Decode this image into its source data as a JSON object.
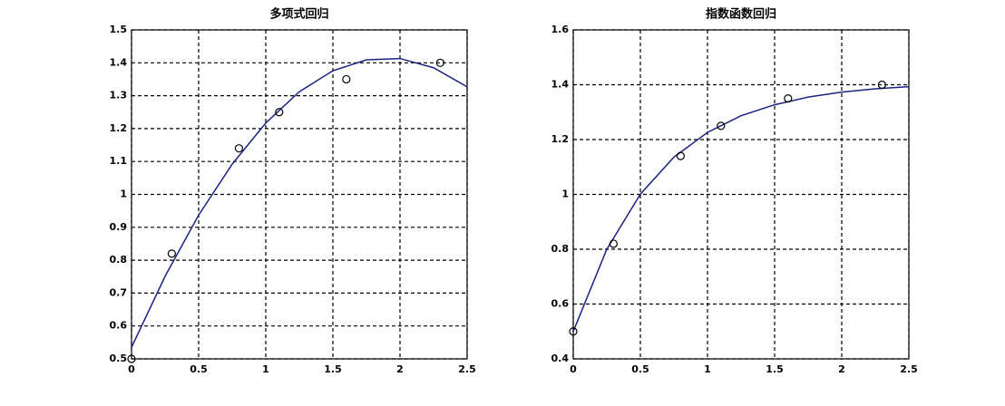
{
  "chart_data": [
    {
      "type": "line",
      "title": "多项式回归",
      "xlim": [
        0,
        2.5
      ],
      "xticks": [
        0,
        0.5,
        1,
        1.5,
        2,
        2.5
      ],
      "ylim": [
        0.5,
        1.5
      ],
      "yticks": [
        0.5,
        0.6,
        0.7,
        0.8,
        0.9,
        1,
        1.1,
        1.2,
        1.3,
        1.4,
        1.5
      ],
      "grid": true,
      "series": [
        {
          "type": "line",
          "color": "#1a237e",
          "x": [
            0,
            0.25,
            0.5,
            0.75,
            1,
            1.25,
            1.5,
            1.75,
            2,
            2.25,
            2.5
          ],
          "values": [
            0.535,
            0.751,
            0.937,
            1.092,
            1.217,
            1.312,
            1.376,
            1.409,
            1.413,
            1.385,
            1.327
          ]
        },
        {
          "type": "scatter",
          "color": "#000000",
          "x": [
            0,
            0.3,
            0.8,
            1.1,
            1.6,
            2.3
          ],
          "values": [
            0.5,
            0.82,
            1.14,
            1.25,
            1.35,
            1.4
          ]
        }
      ]
    },
    {
      "type": "line",
      "title": "指数函数回归",
      "xlim": [
        0,
        2.5
      ],
      "xticks": [
        0,
        0.5,
        1,
        1.5,
        2,
        2.5
      ],
      "ylim": [
        0.4,
        1.6
      ],
      "yticks": [
        0.4,
        0.6,
        0.8,
        1,
        1.2,
        1.4,
        1.6
      ],
      "grid": true,
      "series": [
        {
          "type": "line",
          "color": "#1a237e",
          "x": [
            0,
            0.25,
            0.5,
            0.75,
            1,
            1.25,
            1.5,
            1.75,
            2,
            2.25,
            2.5
          ],
          "values": [
            0.5,
            0.8,
            1.001,
            1.136,
            1.226,
            1.287,
            1.327,
            1.355,
            1.373,
            1.385,
            1.393
          ]
        },
        {
          "type": "scatter",
          "color": "#000000",
          "x": [
            0,
            0.3,
            0.8,
            1.1,
            1.6,
            2.3
          ],
          "values": [
            0.5,
            0.82,
            1.14,
            1.25,
            1.35,
            1.4
          ]
        }
      ]
    }
  ]
}
